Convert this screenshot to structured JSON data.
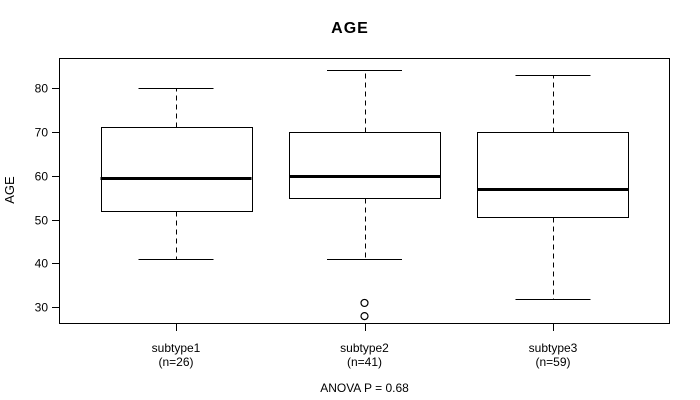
{
  "chart_data": {
    "type": "boxplot",
    "title": "AGE",
    "ylabel": "AGE",
    "xlabel": "",
    "annotation": "ANOVA P = 0.68",
    "grid": false,
    "frame": true,
    "ylim": [
      26.2,
      86.8
    ],
    "yticks": [
      30,
      40,
      50,
      60,
      70,
      80
    ],
    "categories": [
      "subtype1",
      "subtype2",
      "subtype3"
    ],
    "category_sublabels": [
      "(n=26)",
      "(n=41)",
      "(n=59)"
    ],
    "series": [
      {
        "name": "subtype1",
        "n": 26,
        "whisker_low": 41,
        "q1": 52,
        "median": 59.5,
        "q3": 71,
        "whisker_high": 80,
        "outliers": []
      },
      {
        "name": "subtype2",
        "n": 41,
        "whisker_low": 41,
        "q1": 55,
        "median": 60,
        "q3": 70,
        "whisker_high": 84,
        "outliers": [
          31,
          28
        ]
      },
      {
        "name": "subtype3",
        "n": 59,
        "whisker_low": 32,
        "q1": 50.5,
        "median": 57,
        "q3": 70,
        "whisker_high": 83,
        "outliers": []
      }
    ],
    "line_color": "#000000",
    "box_fill": "#ffffff",
    "background": "#ffffff"
  }
}
